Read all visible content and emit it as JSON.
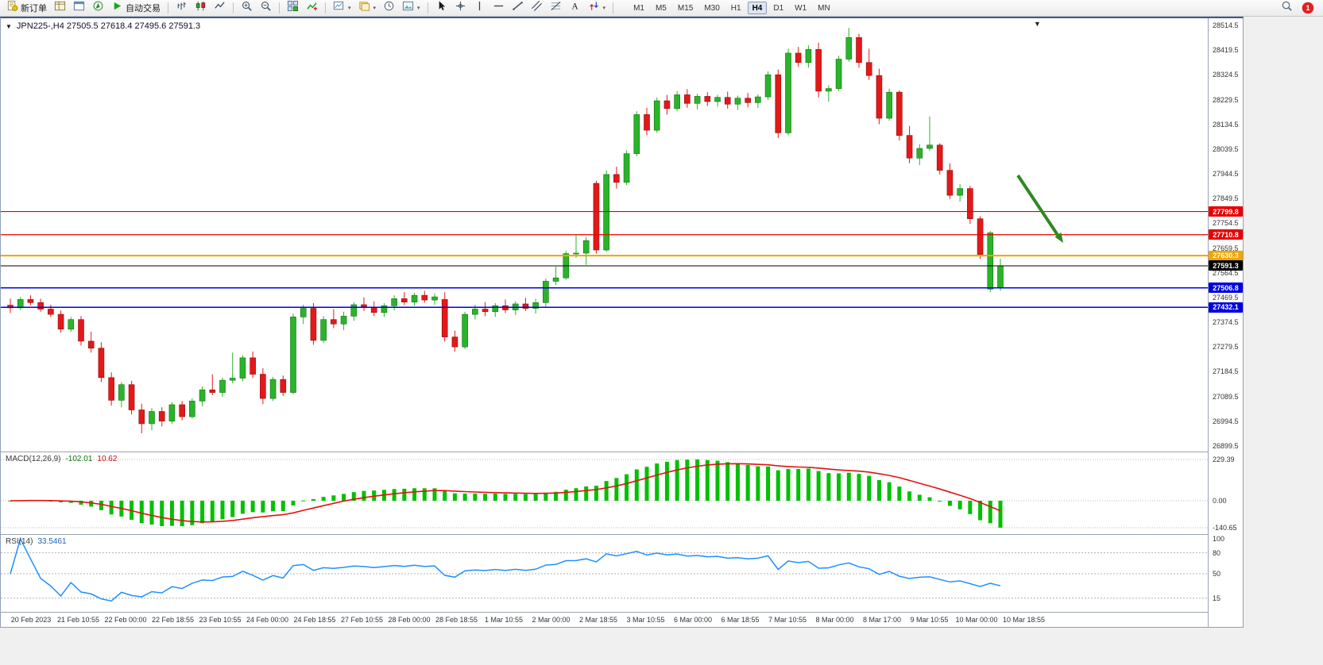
{
  "app": {
    "toolbar": {
      "new_order": "新订单",
      "autotrading": "自动交易",
      "timeframes": [
        "M1",
        "M5",
        "M15",
        "M30",
        "H1",
        "H4",
        "D1",
        "W1",
        "MN"
      ],
      "active_timeframe": "H4",
      "notification_count": "1",
      "icon_groups": [
        {
          "name": "trade",
          "items": [
            {
              "name": "new-order-button",
              "icon": "new-order-icon",
              "label_key": "new_order"
            },
            {
              "name": "market-watch-button",
              "icon": "market-watch-icon"
            },
            {
              "name": "data-window-button",
              "icon": "data-window-icon"
            },
            {
              "name": "navigator-button",
              "icon": "navigator-icon"
            },
            {
              "name": "autotrading-button",
              "icon": "autotrading-icon",
              "label_key": "autotrading"
            }
          ]
        },
        {
          "name": "chart-type",
          "items": [
            {
              "name": "bars-chart-button",
              "icon": "bars-chart-icon"
            },
            {
              "name": "candles-chart-button",
              "icon": "candles-chart-icon"
            },
            {
              "name": "line-chart-button",
              "icon": "line-chart-icon"
            }
          ]
        },
        {
          "name": "zoom",
          "items": [
            {
              "name": "zoom-in-button",
              "icon": "zoom-in-icon"
            },
            {
              "name": "zoom-out-button",
              "icon": "zoom-out-icon"
            }
          ]
        },
        {
          "name": "windows",
          "items": [
            {
              "name": "tile-windows-button",
              "icon": "tile-windows-icon"
            },
            {
              "name": "indicators-button",
              "icon": "indicators-icon"
            }
          ]
        },
        {
          "name": "chart-tools",
          "items": [
            {
              "name": "new-chart-button",
              "icon": "new-chart-icon",
              "caret": true
            },
            {
              "name": "profiles-button",
              "icon": "profiles-icon",
              "caret": true
            },
            {
              "name": "cycles-button",
              "icon": "cycles-icon"
            },
            {
              "name": "templates-button",
              "icon": "templates-icon",
              "caret": true
            }
          ]
        },
        {
          "name": "drawing",
          "items": [
            {
              "name": "cursor-button",
              "icon": "cursor-icon"
            },
            {
              "name": "crosshair-button",
              "icon": "crosshair-icon"
            },
            {
              "name": "vertical-line-button",
              "icon": "vline-icon"
            },
            {
              "name": "horizontal-line-button",
              "icon": "hline-icon"
            },
            {
              "name": "trendline-button",
              "icon": "trendline-icon"
            },
            {
              "name": "channel-button",
              "icon": "channel-icon"
            },
            {
              "name": "fibonacci-button",
              "icon": "fibo-icon"
            },
            {
              "name": "text-button",
              "icon": "text-icon"
            },
            {
              "name": "arrows-button",
              "icon": "arrows-icon",
              "caret": true
            }
          ]
        }
      ]
    }
  },
  "chart": {
    "header": "JPN225-,H4  27505.5 27618.4 27495.6 27591.3",
    "symbol": "JPN225-",
    "period": "H4",
    "ohlc": {
      "open": 27505.5,
      "high": 27618.4,
      "low": 27495.6,
      "close": 27591.3
    },
    "y_axis": {
      "max": 28514.5,
      "min": 26899.5,
      "step": 95,
      "labels": [
        "28514.5",
        "28419.5",
        "28324.5",
        "28229.5",
        "28134.5",
        "28039.5",
        "27944.5",
        "27849.5",
        "27754.5",
        "27659.5",
        "27564.5",
        "27469.5",
        "27374.5",
        "27279.5",
        "27184.5",
        "27089.5",
        "26994.5",
        "26899.5"
      ]
    },
    "x_axis": [
      "20 Feb 2023",
      "21 Feb 10:55",
      "22 Feb 00:00",
      "22 Feb 18:55",
      "23 Feb 10:55",
      "24 Feb 00:00",
      "24 Feb 18:55",
      "27 Feb 10:55",
      "28 Feb 00:00",
      "28 Feb 18:55",
      "1 Mar 10:55",
      "2 Mar 00:00",
      "2 Mar 18:55",
      "3 Mar 10:55",
      "6 Mar 00:00",
      "6 Mar 18:55",
      "7 Mar 10:55",
      "8 Mar 00:00",
      "8 Mar 17:00",
      "9 Mar 10:55",
      "10 Mar 00:00",
      "10 Mar 18:55"
    ],
    "hlines": [
      {
        "name": "resistance-line-1",
        "value": 27799.8,
        "label": "27799.8",
        "color": "#e80000",
        "width": 1.2
      },
      {
        "name": "resistance-line-2",
        "value": 27710.8,
        "label": "27710.8",
        "color": "#e80000",
        "width": 1.2
      },
      {
        "name": "pivot-line",
        "value": 27630.3,
        "label": "27630.3",
        "color": "#f0a500",
        "width": 2
      },
      {
        "name": "bid-price-line",
        "value": 27591.3,
        "label": "27591.3",
        "color": "#000000",
        "width": 1
      },
      {
        "name": "support-line-1",
        "value": 27506.8,
        "label": "27506.8",
        "color": "#0000dd",
        "width": 1.5
      },
      {
        "name": "support-line-2",
        "value": 27432.1,
        "label": "27432.1",
        "color": "#0000dd",
        "width": 1.5
      }
    ],
    "arrow_annotation": {
      "color": "#2c8a1e"
    },
    "colors": {
      "up": "#2ab42a",
      "down": "#e41818",
      "background": "#ffffff"
    }
  },
  "chart_data": {
    "type": "candlestick",
    "symbol": "JPN225-",
    "timeframe": "H4",
    "candles": [
      [
        27440,
        27465,
        27410,
        27430
      ],
      [
        27430,
        27472,
        27422,
        27462
      ],
      [
        27462,
        27478,
        27440,
        27450
      ],
      [
        27450,
        27465,
        27415,
        27425
      ],
      [
        27425,
        27442,
        27395,
        27405
      ],
      [
        27405,
        27420,
        27335,
        27348
      ],
      [
        27348,
        27395,
        27338,
        27385
      ],
      [
        27385,
        27398,
        27285,
        27302
      ],
      [
        27302,
        27338,
        27258,
        27275
      ],
      [
        27275,
        27298,
        27145,
        27162
      ],
      [
        27162,
        27182,
        27055,
        27075
      ],
      [
        27075,
        27145,
        27048,
        27135
      ],
      [
        27135,
        27150,
        27020,
        27038
      ],
      [
        27038,
        27062,
        26948,
        26985
      ],
      [
        26985,
        27045,
        26960,
        27032
      ],
      [
        27032,
        27048,
        26975,
        26995
      ],
      [
        26995,
        27068,
        26985,
        27058
      ],
      [
        27058,
        27072,
        26998,
        27012
      ],
      [
        27012,
        27082,
        27005,
        27072
      ],
      [
        27072,
        27128,
        27052,
        27115
      ],
      [
        27115,
        27175,
        27095,
        27105
      ],
      [
        27105,
        27162,
        27088,
        27152
      ],
      [
        27152,
        27258,
        27140,
        27160
      ],
      [
        27160,
        27248,
        27148,
        27238
      ],
      [
        27238,
        27262,
        27160,
        27175
      ],
      [
        27175,
        27198,
        27060,
        27082
      ],
      [
        27082,
        27165,
        27072,
        27155
      ],
      [
        27155,
        27170,
        27092,
        27105
      ],
      [
        27105,
        27408,
        27098,
        27395
      ],
      [
        27395,
        27442,
        27368,
        27428
      ],
      [
        27428,
        27448,
        27288,
        27305
      ],
      [
        27305,
        27398,
        27295,
        27385
      ],
      [
        27385,
        27425,
        27352,
        27368
      ],
      [
        27368,
        27415,
        27345,
        27398
      ],
      [
        27398,
        27452,
        27380,
        27442
      ],
      [
        27442,
        27470,
        27418,
        27432
      ],
      [
        27432,
        27455,
        27398,
        27412
      ],
      [
        27412,
        27448,
        27395,
        27438
      ],
      [
        27438,
        27478,
        27420,
        27465
      ],
      [
        27465,
        27490,
        27440,
        27452
      ],
      [
        27452,
        27488,
        27438,
        27478
      ],
      [
        27478,
        27495,
        27450,
        27460
      ],
      [
        27460,
        27485,
        27442,
        27472
      ],
      [
        27462,
        27490,
        27300,
        27318
      ],
      [
        27318,
        27342,
        27262,
        27280
      ],
      [
        27280,
        27415,
        27272,
        27405
      ],
      [
        27405,
        27442,
        27385,
        27425
      ],
      [
        27425,
        27452,
        27398,
        27415
      ],
      [
        27415,
        27448,
        27395,
        27438
      ],
      [
        27438,
        27462,
        27410,
        27422
      ],
      [
        27422,
        27455,
        27402,
        27445
      ],
      [
        27445,
        27468,
        27418,
        27428
      ],
      [
        27428,
        27465,
        27408,
        27450
      ],
      [
        27450,
        27542,
        27430,
        27532
      ],
      [
        27532,
        27588,
        27518,
        27545
      ],
      [
        27545,
        27648,
        27538,
        27638
      ],
      [
        27638,
        27712,
        27622,
        27640
      ],
      [
        27640,
        27702,
        27595,
        27688
      ],
      [
        27908,
        27918,
        27638,
        27652
      ],
      [
        27652,
        27958,
        27645,
        27942
      ],
      [
        27942,
        27972,
        27888,
        27912
      ],
      [
        27912,
        28035,
        27902,
        28022
      ],
      [
        28022,
        28185,
        28012,
        28172
      ],
      [
        28172,
        28198,
        28092,
        28112
      ],
      [
        28112,
        28238,
        28102,
        28225
      ],
      [
        28225,
        28248,
        28172,
        28195
      ],
      [
        28195,
        28262,
        28185,
        28248
      ],
      [
        28248,
        28270,
        28198,
        28215
      ],
      [
        28215,
        28252,
        28192,
        28242
      ],
      [
        28242,
        28258,
        28205,
        28222
      ],
      [
        28222,
        28248,
        28202,
        28238
      ],
      [
        28238,
        28260,
        28195,
        28212
      ],
      [
        28212,
        28245,
        28190,
        28235
      ],
      [
        28235,
        28255,
        28200,
        28218
      ],
      [
        28218,
        28250,
        28198,
        28240
      ],
      [
        28240,
        28338,
        28228,
        28325
      ],
      [
        28325,
        28345,
        28082,
        28102
      ],
      [
        28102,
        28425,
        28092,
        28408
      ],
      [
        28408,
        28432,
        28355,
        28372
      ],
      [
        28372,
        28438,
        28352,
        28422
      ],
      [
        28422,
        28448,
        28238,
        28262
      ],
      [
        28262,
        28285,
        28222,
        28272
      ],
      [
        28272,
        28398,
        28262,
        28385
      ],
      [
        28385,
        28505,
        28375,
        28468
      ],
      [
        28468,
        28482,
        28352,
        28372
      ],
      [
        28372,
        28425,
        28305,
        28322
      ],
      [
        28322,
        28348,
        28135,
        28158
      ],
      [
        28158,
        28272,
        28148,
        28258
      ],
      [
        28258,
        28265,
        28072,
        28092
      ],
      [
        28092,
        28128,
        27985,
        28005
      ],
      [
        28005,
        28058,
        27978,
        28042
      ],
      [
        28042,
        28165,
        28032,
        28055
      ],
      [
        28055,
        28062,
        27942,
        27958
      ],
      [
        27958,
        27985,
        27848,
        27862
      ],
      [
        27862,
        27905,
        27838,
        27888
      ],
      [
        27888,
        27898,
        27752,
        27772
      ],
      [
        27772,
        27782,
        27618,
        27635
      ],
      [
        27502,
        27725,
        27490,
        27718
      ],
      [
        27505.5,
        27618.4,
        27495.6,
        27591.3
      ]
    ]
  },
  "indicators": {
    "macd": {
      "label": "MACD(12,26,9)",
      "main_value": "-102.01",
      "signal_value": "10.62",
      "fast": 12,
      "slow": 26,
      "signal": 9,
      "scale_labels": [
        "229.39",
        "0.00",
        "-140.65"
      ],
      "scale_values": [
        229.39,
        0,
        -140.65
      ],
      "histogram_color": "#00c000",
      "signal_color": "#e41212"
    },
    "rsi": {
      "label": "RSI(14)",
      "value": "33.5461",
      "period": 14,
      "scale_labels": [
        "100",
        "80",
        "50",
        "15"
      ],
      "scale_values": [
        100,
        80,
        50,
        15
      ],
      "levels": [
        80,
        50,
        15
      ],
      "line_color": "#1e90ff"
    }
  }
}
